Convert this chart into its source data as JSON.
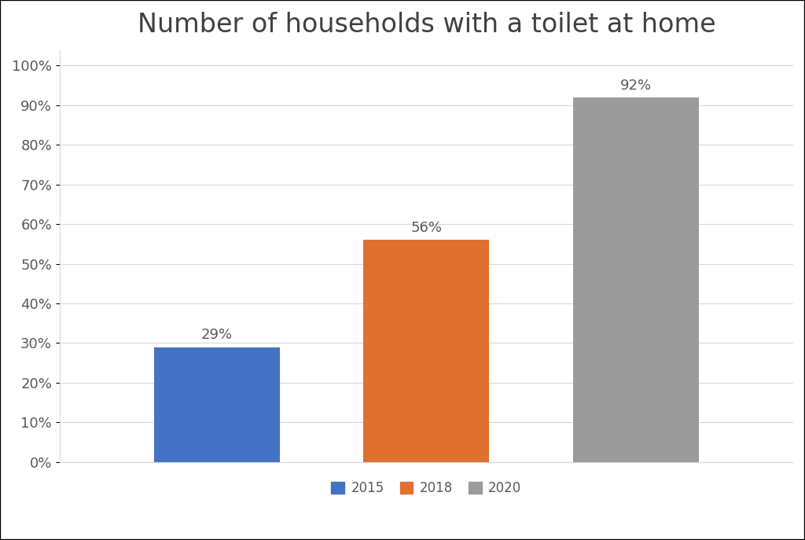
{
  "title": "Number of households with a toilet at home",
  "categories": [
    "2015",
    "2018",
    "2020"
  ],
  "values": [
    29,
    56,
    92
  ],
  "bar_colors": [
    "#4472C4",
    "#E07030",
    "#9B9B9B"
  ],
  "bar_labels": [
    "29%",
    "56%",
    "92%"
  ],
  "ylim": [
    0,
    100
  ],
  "ytick_labels": [
    "0%",
    "10%",
    "20%",
    "30%",
    "40%",
    "50%",
    "60%",
    "70%",
    "80%",
    "90%",
    "100%"
  ],
  "ytick_values": [
    0,
    10,
    20,
    30,
    40,
    50,
    60,
    70,
    80,
    90,
    100
  ],
  "background_color": "#FFFFFF",
  "title_fontsize": 24,
  "label_fontsize": 13,
  "legend_fontsize": 12,
  "tick_fontsize": 13,
  "bar_width": 0.18,
  "grid_color": "#D9D9D9",
  "text_color": "#595959",
  "figure_border_color": "#000000"
}
